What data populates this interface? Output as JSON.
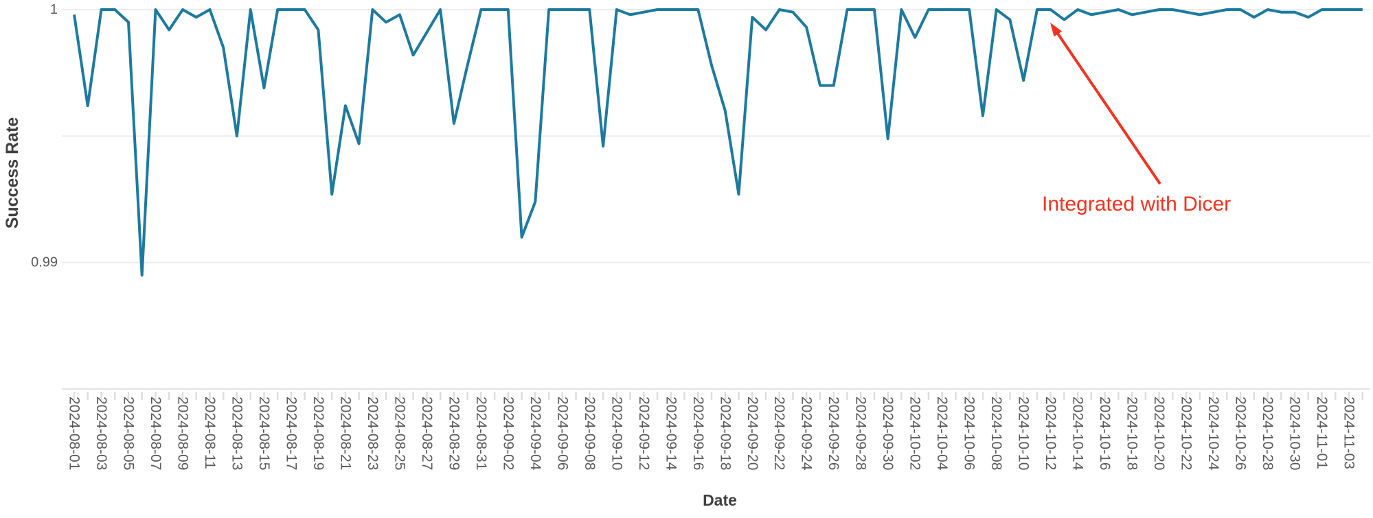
{
  "chart_data": {
    "type": "line",
    "title": "",
    "xlabel": "Date",
    "ylabel": "Success Rate",
    "legend": "none",
    "grid": "horizontal",
    "ylim": [
      0.985,
      1.0
    ],
    "yticks": [
      {
        "value": 1.0,
        "label": "1"
      },
      {
        "value": 0.99,
        "label": "0.99"
      }
    ],
    "ygrid_values": [
      1.0,
      0.995,
      0.99
    ],
    "x_label_every": 2,
    "x": [
      "2024-08-01",
      "2024-08-02",
      "2024-08-03",
      "2024-08-04",
      "2024-08-05",
      "2024-08-06",
      "2024-08-07",
      "2024-08-08",
      "2024-08-09",
      "2024-08-10",
      "2024-08-11",
      "2024-08-12",
      "2024-08-13",
      "2024-08-14",
      "2024-08-15",
      "2024-08-16",
      "2024-08-17",
      "2024-08-18",
      "2024-08-19",
      "2024-08-20",
      "2024-08-21",
      "2024-08-22",
      "2024-08-23",
      "2024-08-24",
      "2024-08-25",
      "2024-08-26",
      "2024-08-27",
      "2024-08-28",
      "2024-08-29",
      "2024-08-30",
      "2024-08-31",
      "2024-09-01",
      "2024-09-02",
      "2024-09-03",
      "2024-09-04",
      "2024-09-05",
      "2024-09-06",
      "2024-09-07",
      "2024-09-08",
      "2024-09-09",
      "2024-09-10",
      "2024-09-11",
      "2024-09-12",
      "2024-09-13",
      "2024-09-14",
      "2024-09-15",
      "2024-09-16",
      "2024-09-17",
      "2024-09-18",
      "2024-09-19",
      "2024-09-20",
      "2024-09-21",
      "2024-09-22",
      "2024-09-23",
      "2024-09-24",
      "2024-09-25",
      "2024-09-26",
      "2024-09-27",
      "2024-09-28",
      "2024-09-29",
      "2024-09-30",
      "2024-10-01",
      "2024-10-02",
      "2024-10-03",
      "2024-10-04",
      "2024-10-05",
      "2024-10-06",
      "2024-10-07",
      "2024-10-08",
      "2024-10-09",
      "2024-10-10",
      "2024-10-11",
      "2024-10-12",
      "2024-10-13",
      "2024-10-14",
      "2024-10-15",
      "2024-10-16",
      "2024-10-17",
      "2024-10-18",
      "2024-10-19",
      "2024-10-20",
      "2024-10-21",
      "2024-10-22",
      "2024-10-23",
      "2024-10-24",
      "2024-10-25",
      "2024-10-26",
      "2024-10-27",
      "2024-10-28",
      "2024-10-29",
      "2024-10-30",
      "2024-10-31",
      "2024-11-01",
      "2024-11-02",
      "2024-11-03",
      "2024-11-04"
    ],
    "series": [
      {
        "name": "Success Rate",
        "values": [
          0.9998,
          0.9962,
          1.0,
          1.0,
          0.9995,
          0.9895,
          1.0,
          0.9992,
          1.0,
          0.9997,
          1.0,
          0.9985,
          0.995,
          1.0,
          0.9969,
          1.0,
          1.0,
          1.0,
          0.9992,
          0.9927,
          0.9962,
          0.9947,
          1.0,
          0.9995,
          0.9998,
          0.9982,
          0.9991,
          1.0,
          0.9955,
          0.9978,
          1.0,
          1.0,
          1.0,
          0.991,
          0.9924,
          1.0,
          1.0,
          1.0,
          1.0,
          0.9946,
          1.0,
          0.9998,
          0.9999,
          1.0,
          1.0,
          1.0,
          1.0,
          0.9978,
          0.996,
          0.9927,
          0.9997,
          0.9992,
          1.0,
          0.9999,
          0.9993,
          0.997,
          0.997,
          1.0,
          1.0,
          1.0,
          0.9949,
          1.0,
          0.9989,
          1.0,
          1.0,
          1.0,
          1.0,
          0.9958,
          1.0,
          0.9996,
          0.9972,
          1.0,
          1.0,
          0.9996,
          1.0,
          0.9998,
          0.9999,
          1.0,
          0.9998,
          0.9999,
          1.0,
          1.0,
          0.9999,
          0.9998,
          0.9999,
          1.0,
          1.0,
          0.9997,
          1.0,
          0.9999,
          0.9999,
          0.9997,
          1.0,
          1.0,
          1.0,
          1.0
        ]
      }
    ],
    "annotation": {
      "text": "Integrated with Dicer",
      "points_to_x": "2024-10-12"
    },
    "colors": {
      "line": "#1c7aa0",
      "annotation": "#f5321e",
      "grid": "#ececec",
      "axis_line": "#e2e2e2",
      "tick": "#dedede",
      "tick_label": "#5a5a5a",
      "title": "#404040"
    }
  }
}
